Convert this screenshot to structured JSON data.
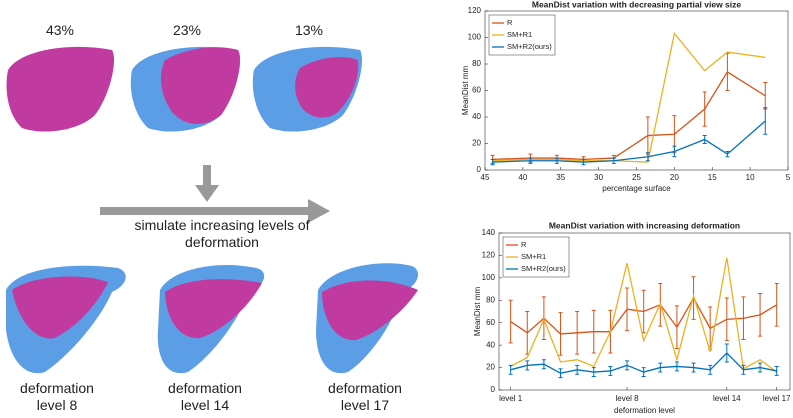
{
  "panels": {
    "top_labels": [
      "43%",
      "23%",
      "13%"
    ],
    "arrow_label": "simulate increasing levels of deformation",
    "bottom_labels": [
      "deformation level 8",
      "deformation level 14",
      "deformation level 17"
    ]
  },
  "chart_data": [
    {
      "type": "line",
      "title": "MeanDist variation with decreasing partial view size",
      "x_label": "percentage surface",
      "y_label": "MeanDist mm",
      "x": [
        44,
        39,
        35.5,
        32,
        28,
        23.5,
        20,
        16,
        13,
        8
      ],
      "series": [
        {
          "name": "R",
          "color": "#d95319",
          "values": [
            8,
            9,
            9,
            8,
            9,
            26,
            27,
            46,
            74,
            56
          ],
          "errors": [
            3,
            3,
            2,
            2,
            2,
            14,
            14,
            13,
            14,
            10
          ]
        },
        {
          "name": "SM+R1",
          "color": "#edb120",
          "values": [
            7,
            8,
            8,
            7,
            7,
            6,
            103,
            75,
            89,
            85
          ]
        },
        {
          "name": "SM+R2(ours)",
          "color": "#0072bd",
          "values": [
            6,
            7,
            7,
            6,
            7,
            10,
            14,
            23,
            12,
            37
          ],
          "errors": [
            2,
            2,
            2,
            2,
            2,
            3,
            4,
            3,
            2,
            10
          ]
        }
      ],
      "xlim": [
        45,
        5
      ],
      "xticks": [
        45,
        40,
        35,
        30,
        25,
        20,
        15,
        10,
        5
      ],
      "ylim": [
        0,
        120
      ],
      "yticks": [
        0,
        20,
        40,
        60,
        80,
        100,
        120
      ],
      "legend": "upper left"
    },
    {
      "type": "line",
      "title": "MeanDist variation with increasing deformation",
      "x_label": "deformation level",
      "y_label": "MeanDist mm",
      "x": [
        1,
        2,
        3,
        4,
        5,
        6,
        7,
        8,
        9,
        10,
        11,
        12,
        13,
        14,
        15,
        16,
        17
      ],
      "series": [
        {
          "name": "R",
          "color": "#d95319",
          "values": [
            61,
            51,
            64,
            50,
            51,
            52,
            52,
            72,
            70,
            76,
            56,
            82,
            55,
            63,
            64,
            67,
            76
          ],
          "errors": [
            19,
            19,
            19,
            19,
            19,
            19,
            19,
            19,
            19,
            19,
            19,
            19,
            19,
            19,
            19,
            19,
            19
          ]
        },
        {
          "name": "SM+R1",
          "color": "#edb120",
          "values": [
            21,
            29,
            63,
            25,
            27,
            21,
            52,
            113,
            44,
            77,
            27,
            84,
            34,
            118,
            19,
            27,
            16
          ]
        },
        {
          "name": "SM+R2(ours)",
          "color": "#0072bd",
          "values": [
            18,
            22,
            23,
            15,
            18,
            16,
            17,
            22,
            16,
            20,
            21,
            20,
            18,
            33,
            18,
            20,
            17
          ],
          "errors": [
            4,
            4,
            4,
            4,
            4,
            4,
            4,
            4,
            4,
            4,
            4,
            4,
            4,
            8,
            4,
            4,
            4
          ]
        }
      ],
      "xlim": [
        0.3,
        17.8
      ],
      "xticks": [
        {
          "value": 1,
          "label": "level 1"
        },
        {
          "value": 8,
          "label": "level 8"
        },
        {
          "value": 14,
          "label": "level 14"
        },
        {
          "value": 17,
          "label": "level 17"
        }
      ],
      "ylim": [
        0,
        140
      ],
      "yticks": [
        0,
        20,
        40,
        60,
        80,
        100,
        120,
        140
      ],
      "legend": "upper left"
    }
  ]
}
